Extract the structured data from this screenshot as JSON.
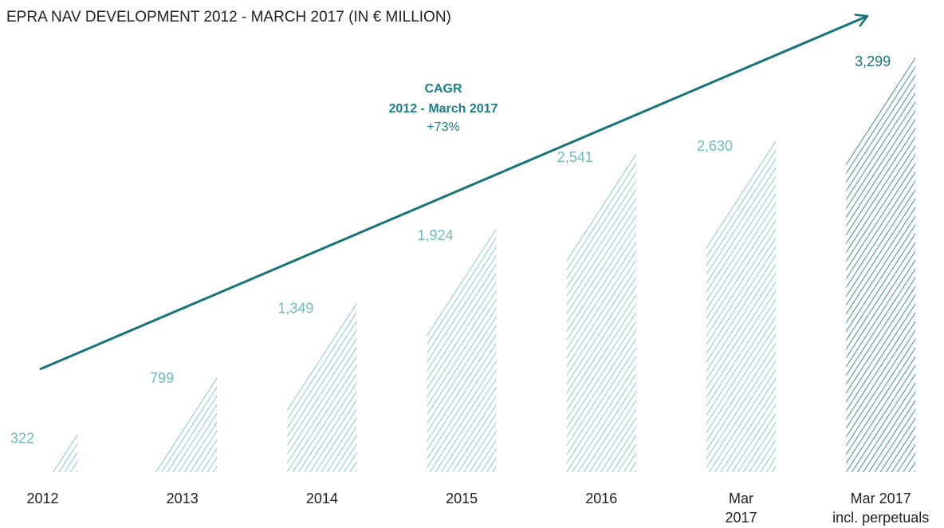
{
  "chart_data": {
    "type": "bar",
    "title": "EPRA NAV DEVELOPMENT 2012 - MARCH 2017 (IN € MILLION)",
    "categories": [
      [
        "2012"
      ],
      [
        "2013"
      ],
      [
        "2014"
      ],
      [
        "2015"
      ],
      [
        "2016"
      ],
      [
        "Mar",
        "2017"
      ],
      [
        "Mar 2017",
        "incl. perpetuals"
      ]
    ],
    "values": [
      322,
      799,
      1349,
      1924,
      2541,
      2630,
      3299
    ],
    "value_labels": [
      "322",
      "799",
      "1,349",
      "1,924",
      "2,541",
      "2,630",
      "3,299"
    ],
    "colors": [
      "#6dbcbc",
      "#6dbcbc",
      "#6dbcbc",
      "#6dbcbc",
      "#6dbcbc",
      "#6dbcbc",
      "#16737a"
    ],
    "annotation": {
      "title": "CAGR",
      "period": "2012 - March 2017",
      "value": "+73%"
    }
  }
}
